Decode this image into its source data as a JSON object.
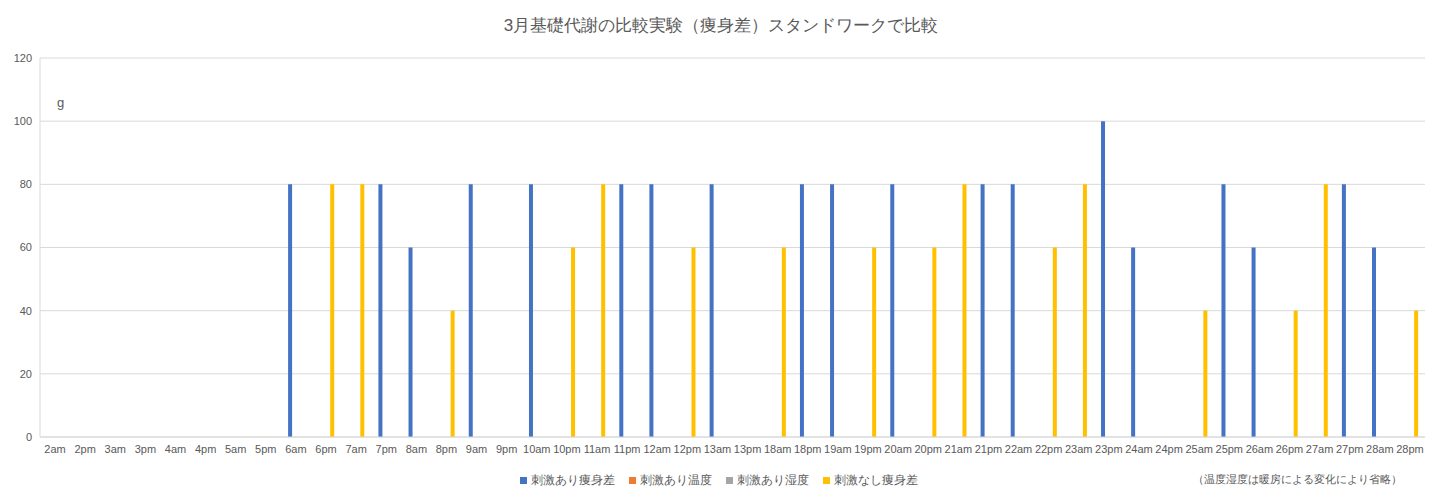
{
  "chart_data": {
    "type": "bar",
    "title": "3月基礎代謝の比較実験（痩身差）スタンドワークで比較",
    "y_label": "g",
    "annotation": "（温度湿度は暖房による変化により省略）",
    "categories": [
      "2am",
      "2pm",
      "3am",
      "3pm",
      "4am",
      "4pm",
      "5am",
      "5pm",
      "6am",
      "6pm",
      "7am",
      "7pm",
      "8am",
      "8pm",
      "9am",
      "9pm",
      "10am",
      "10pm",
      "11am",
      "11pm",
      "12am",
      "12pm",
      "13am",
      "13pm",
      "18am",
      "18pm",
      "19am",
      "19pm",
      "20am",
      "20pm",
      "21am",
      "21pm",
      "22am",
      "22pm",
      "23am",
      "23pm",
      "24am",
      "24pm",
      "25am",
      "25pm",
      "26am",
      "26pm",
      "27am",
      "27pm",
      "28am",
      "28pm"
    ],
    "series": [
      {
        "name": "刺激あり痩身差",
        "color": "#4472c4",
        "values": [
          null,
          null,
          null,
          null,
          null,
          null,
          null,
          null,
          80,
          null,
          null,
          80,
          60,
          null,
          80,
          null,
          80,
          null,
          null,
          80,
          80,
          null,
          80,
          null,
          null,
          80,
          80,
          null,
          80,
          null,
          null,
          80,
          80,
          null,
          null,
          100,
          60,
          null,
          null,
          80,
          60,
          null,
          null,
          80,
          60,
          null
        ]
      },
      {
        "name": "刺激あり温度",
        "color": "#ed7d31",
        "values": [
          null,
          null,
          null,
          null,
          null,
          null,
          null,
          null,
          null,
          null,
          null,
          null,
          null,
          null,
          null,
          null,
          null,
          null,
          null,
          null,
          null,
          null,
          null,
          null,
          null,
          null,
          null,
          null,
          null,
          null,
          null,
          null,
          null,
          null,
          null,
          null,
          null,
          null,
          null,
          null,
          null,
          null,
          null,
          null,
          null,
          null
        ]
      },
      {
        "name": "刺激あり湿度",
        "color": "#a5a5a5",
        "values": [
          null,
          null,
          null,
          null,
          null,
          null,
          null,
          null,
          null,
          null,
          null,
          null,
          null,
          null,
          null,
          null,
          null,
          null,
          null,
          null,
          null,
          null,
          null,
          null,
          null,
          null,
          null,
          null,
          null,
          null,
          null,
          null,
          null,
          null,
          null,
          null,
          null,
          null,
          null,
          null,
          null,
          null,
          null,
          null,
          null,
          null
        ]
      },
      {
        "name": "刺激なし痩身差",
        "color": "#ffc000",
        "values": [
          null,
          null,
          null,
          null,
          null,
          null,
          null,
          null,
          null,
          80,
          80,
          null,
          null,
          40,
          null,
          null,
          null,
          60,
          80,
          null,
          null,
          60,
          null,
          null,
          60,
          null,
          null,
          60,
          null,
          60,
          80,
          null,
          null,
          60,
          80,
          null,
          null,
          null,
          40,
          null,
          null,
          40,
          80,
          null,
          null,
          40
        ]
      }
    ],
    "ylim": [
      0,
      120
    ],
    "yticks": [
      0,
      20,
      40,
      60,
      80,
      100,
      120
    ],
    "grid": true,
    "legend": "bottom"
  }
}
